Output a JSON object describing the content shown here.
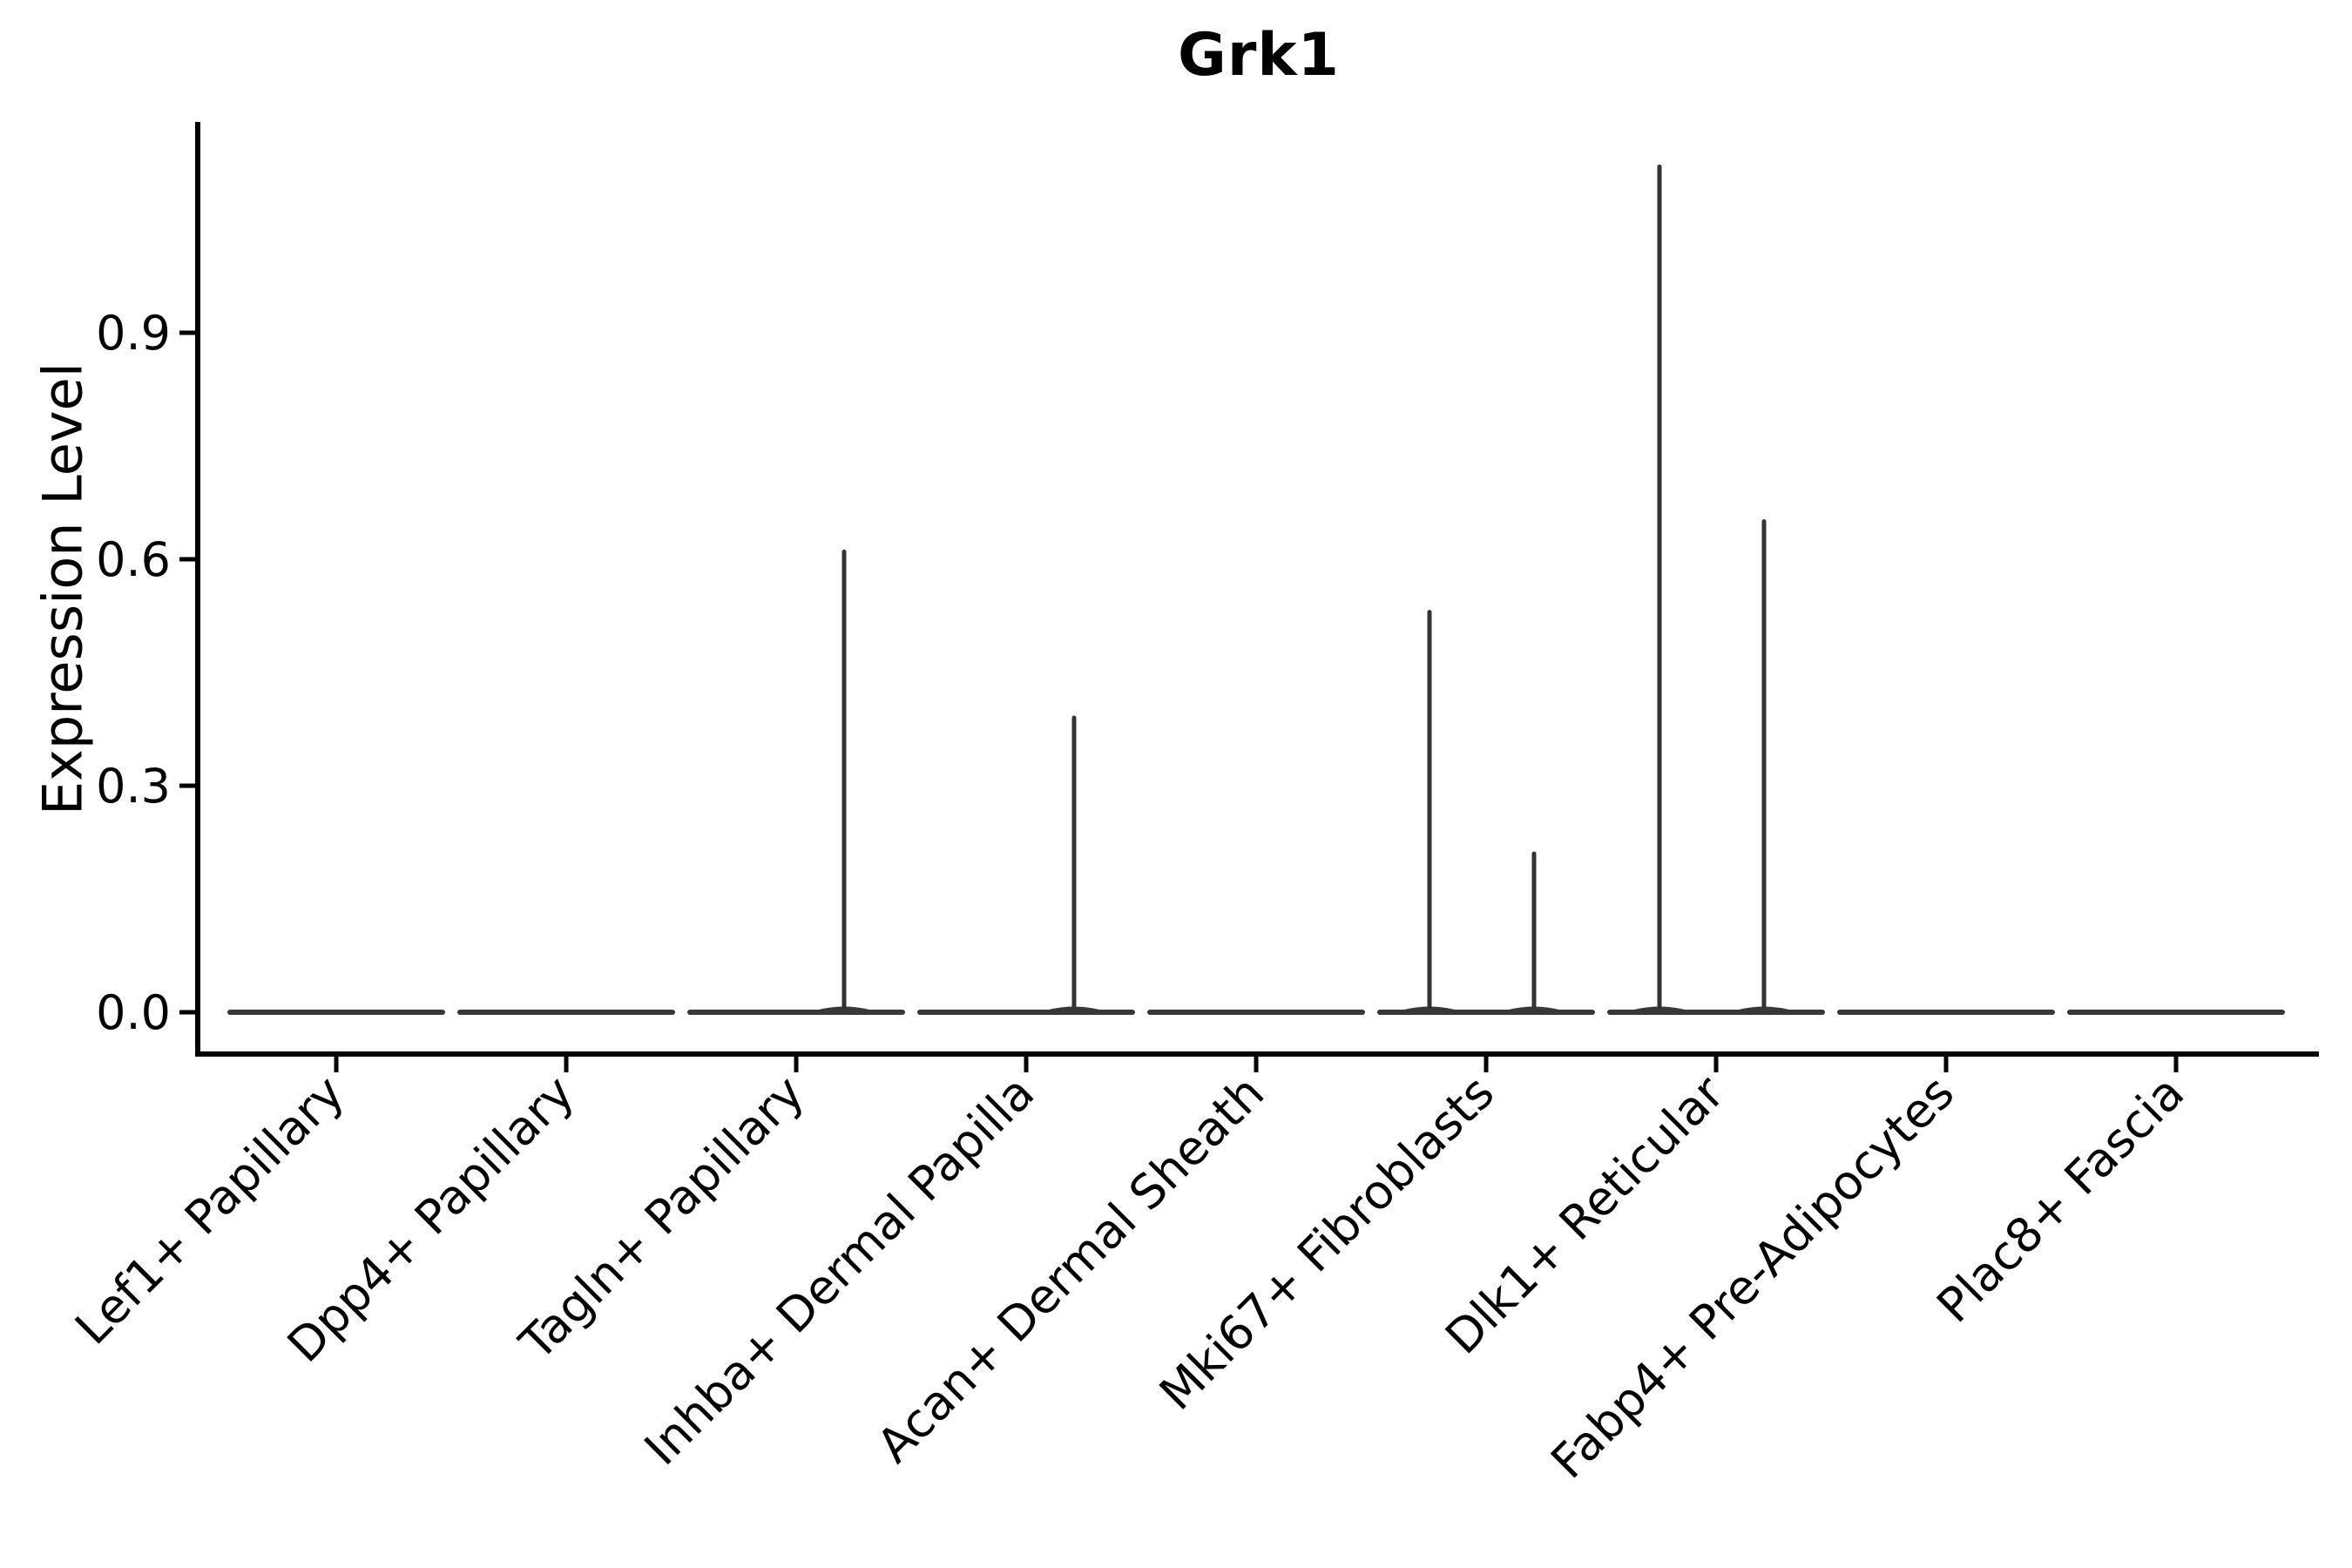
{
  "chart_data": {
    "type": "violin",
    "title": "Grk1",
    "xlabel": "",
    "ylabel": "Expression Level",
    "ytick_labels": [
      "0.0",
      "0.3",
      "0.6",
      "0.9"
    ],
    "ytick_values": [
      0.0,
      0.3,
      0.6,
      0.9
    ],
    "ylim": [
      -0.055,
      1.18
    ],
    "grid": false,
    "legend": null,
    "background_color": "#ffffff",
    "axis_color": "#000000",
    "violin_color": "#383838",
    "spike_color": "#333333",
    "categories": [
      "Lef1+ Papillary",
      "Dpp4+ Papillary",
      "Tagln+ Papillary",
      "Inhba+ Dermal Papilla",
      "Acan+ Dermal Sheath",
      "Mki67+ Fibroblasts",
      "Dlk1+ Reticular",
      "Fabp4+ Pre-Adipocytes",
      "Plac8+ Fascia"
    ],
    "violins": [
      {
        "category": "Lef1+ Papillary",
        "base_at_zero": true,
        "spikes": []
      },
      {
        "category": "Dpp4+ Papillary",
        "base_at_zero": true,
        "spikes": []
      },
      {
        "category": "Tagln+ Papillary",
        "base_at_zero": true,
        "spikes": [
          {
            "value": 0.61,
            "side": "right"
          }
        ]
      },
      {
        "category": "Inhba+ Dermal Papilla",
        "base_at_zero": true,
        "spikes": [
          {
            "value": 0.39,
            "side": "right"
          }
        ]
      },
      {
        "category": "Acan+ Dermal Sheath",
        "base_at_zero": true,
        "spikes": []
      },
      {
        "category": "Mki67+ Fibroblasts",
        "base_at_zero": true,
        "spikes": [
          {
            "value": 0.53,
            "side": "left"
          },
          {
            "value": 0.21,
            "side": "right"
          }
        ]
      },
      {
        "category": "Dlk1+ Reticular",
        "base_at_zero": true,
        "spikes": [
          {
            "value": 1.12,
            "side": "left"
          },
          {
            "value": 0.65,
            "side": "right"
          }
        ]
      },
      {
        "category": "Fabp4+ Pre-Adipocytes",
        "base_at_zero": true,
        "spikes": []
      },
      {
        "category": "Plac8+ Fascia",
        "base_at_zero": true,
        "spikes": []
      }
    ]
  }
}
